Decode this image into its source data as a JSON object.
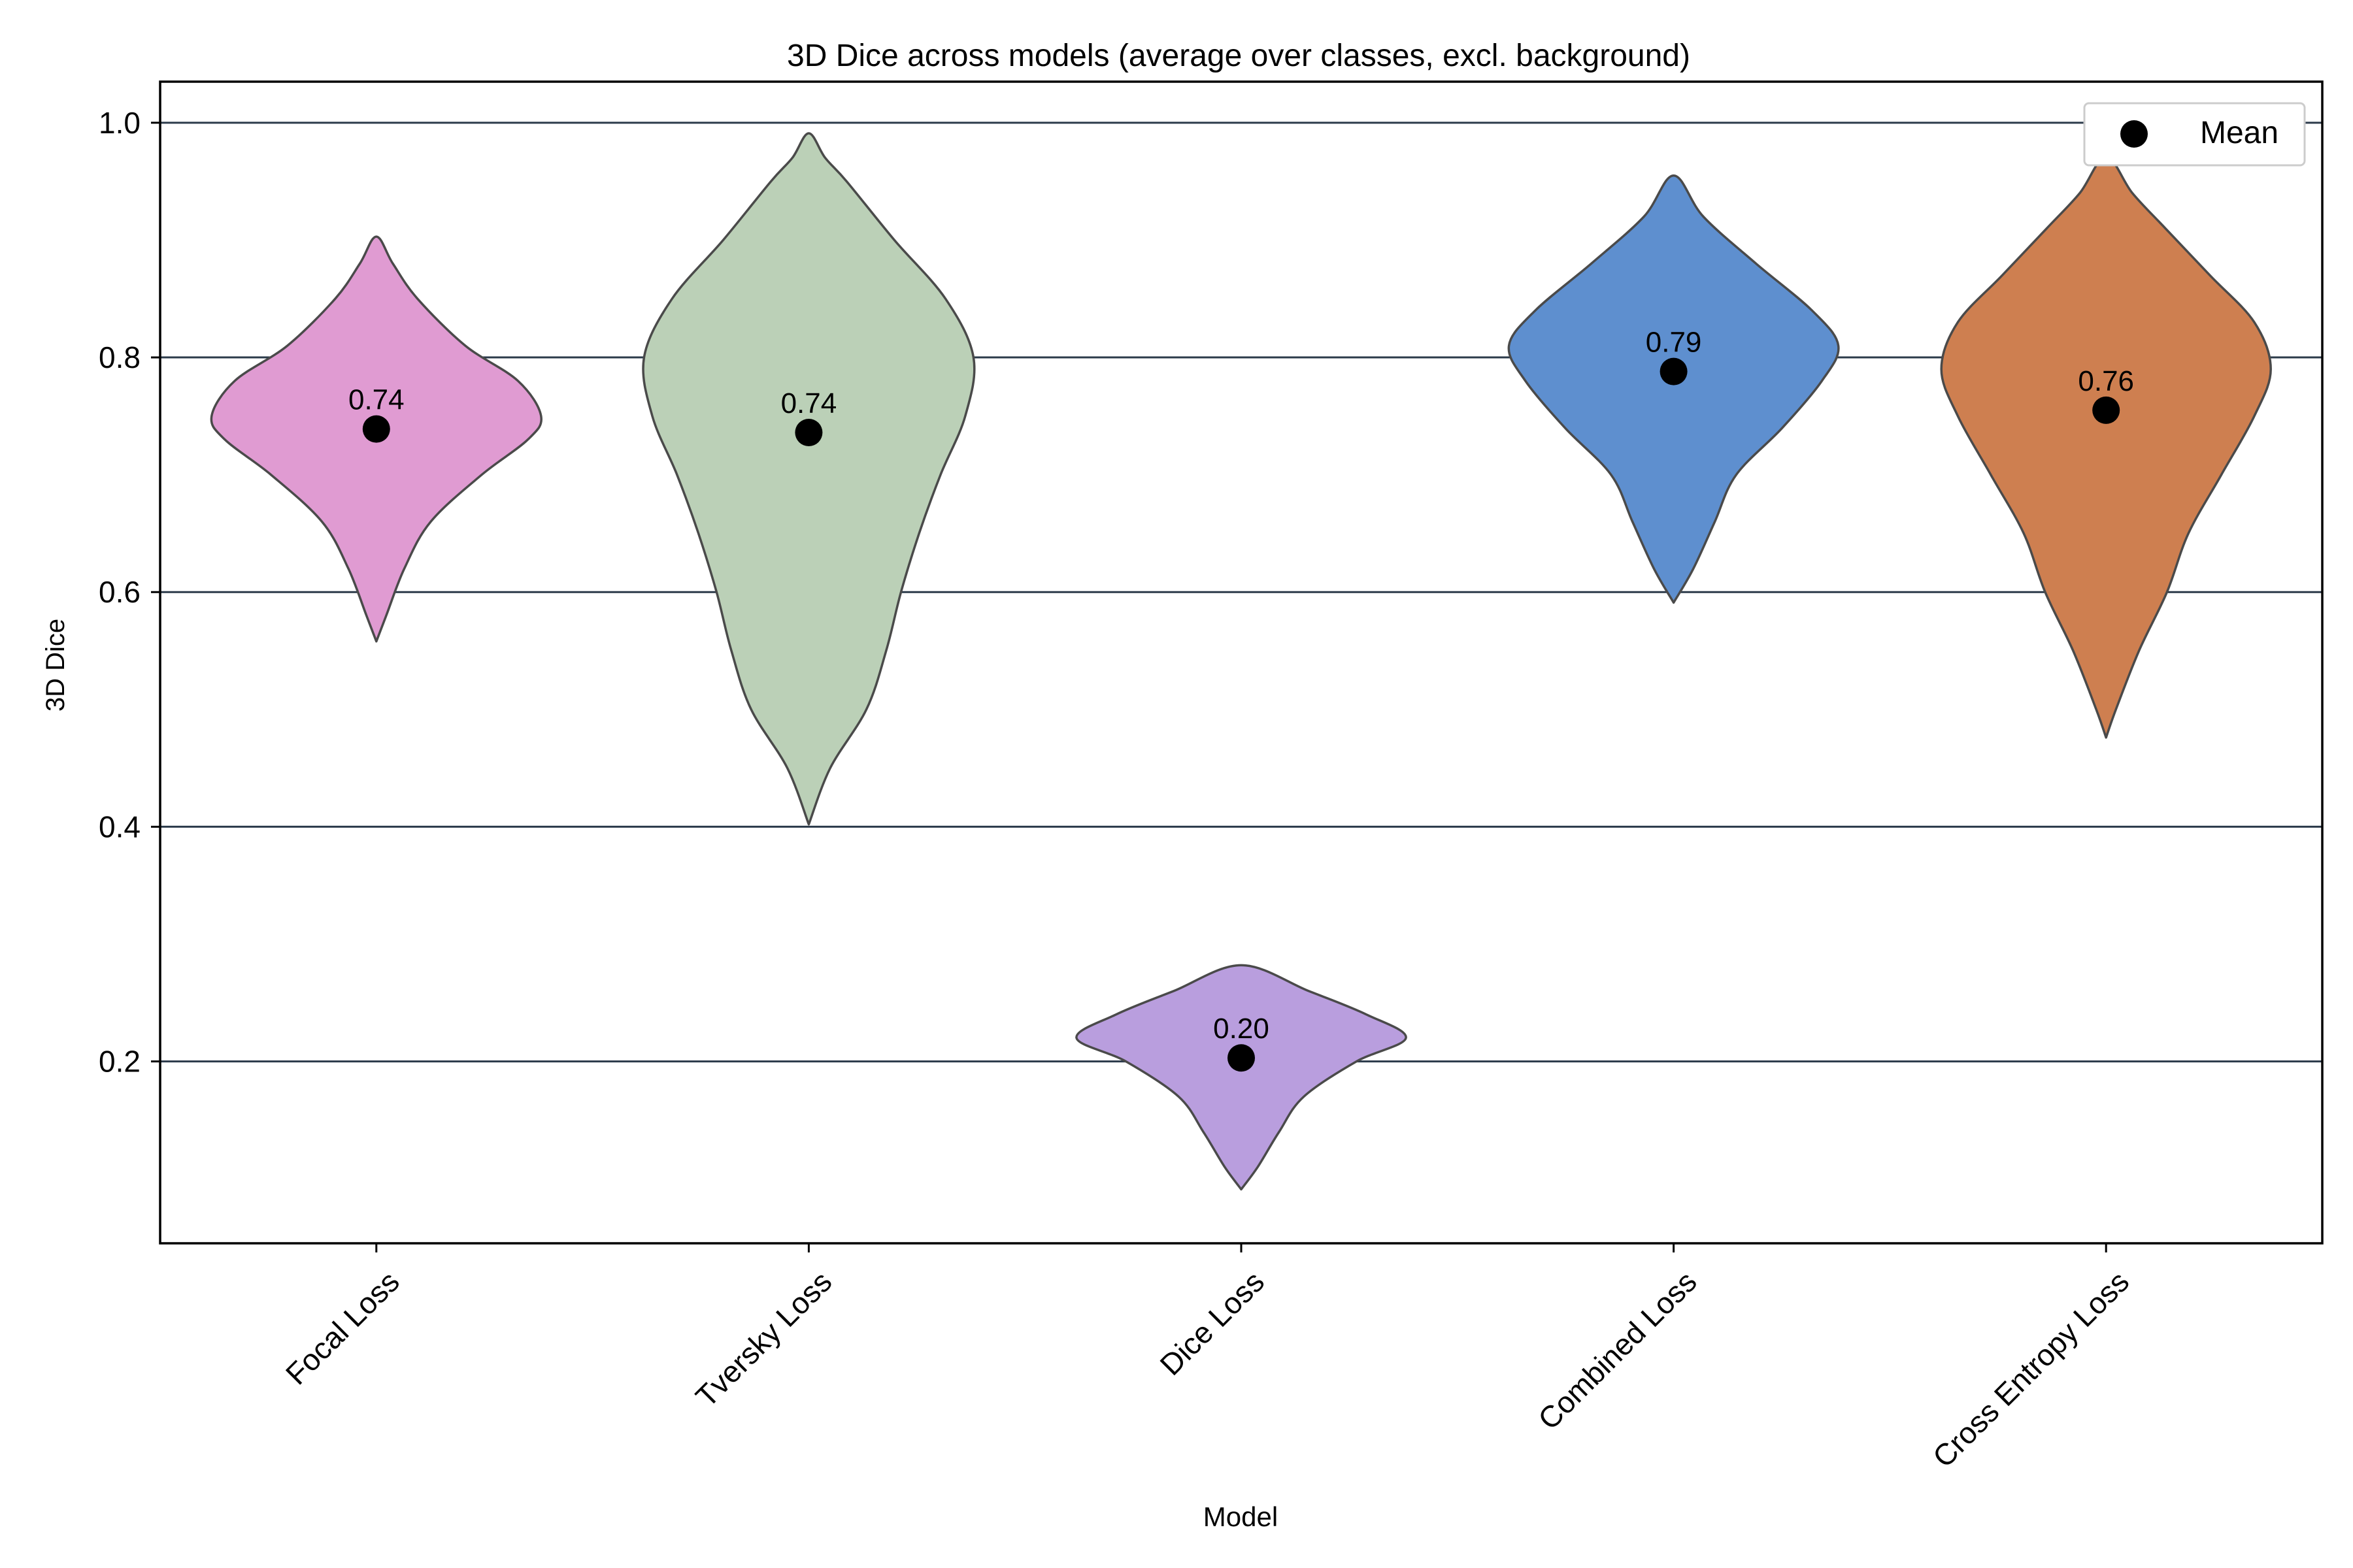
{
  "chart_data": {
    "type": "violin",
    "title": "3D Dice across models (average over classes, excl. background)",
    "xlabel": "Model",
    "ylabel": "3D Dice",
    "ylim": [
      0.045,
      1.035
    ],
    "yticks": [
      0.2,
      0.4,
      0.6,
      0.8,
      1.0
    ],
    "ytick_labels": [
      "0.2",
      "0.4",
      "0.6",
      "0.8",
      "1.0"
    ],
    "grid": "horizontal",
    "legend": {
      "position": "top-right",
      "entries": [
        {
          "label": "Mean",
          "marker": "black-dot"
        }
      ]
    },
    "categories": [
      "Focal Loss",
      "Tversky Loss",
      "Dice Loss",
      "Combined Loss",
      "Cross Entropy Loss"
    ],
    "series": [
      {
        "category": "Focal Loss",
        "color": "#e09bd2",
        "min": 0.558,
        "max": 0.903,
        "mean": 0.739,
        "mean_label": "0.74",
        "profile": [
          [
            0.558,
            0.0
          ],
          [
            0.58,
            0.06
          ],
          [
            0.62,
            0.17
          ],
          [
            0.66,
            0.33
          ],
          [
            0.7,
            0.64
          ],
          [
            0.73,
            0.92
          ],
          [
            0.75,
            1.0
          ],
          [
            0.78,
            0.86
          ],
          [
            0.81,
            0.54
          ],
          [
            0.85,
            0.25
          ],
          [
            0.88,
            0.1
          ],
          [
            0.903,
            0.0
          ]
        ]
      },
      {
        "category": "Tversky Loss",
        "color": "#bbd0b7",
        "min": 0.402,
        "max": 0.991,
        "mean": 0.736,
        "mean_label": "0.74",
        "profile": [
          [
            0.402,
            0.0
          ],
          [
            0.45,
            0.13
          ],
          [
            0.5,
            0.35
          ],
          [
            0.55,
            0.47
          ],
          [
            0.6,
            0.56
          ],
          [
            0.65,
            0.67
          ],
          [
            0.7,
            0.8
          ],
          [
            0.75,
            0.95
          ],
          [
            0.8,
            1.0
          ],
          [
            0.85,
            0.83
          ],
          [
            0.9,
            0.52
          ],
          [
            0.95,
            0.23
          ],
          [
            0.97,
            0.1
          ],
          [
            0.991,
            0.0
          ]
        ]
      },
      {
        "category": "Dice Loss",
        "color": "#b99ede",
        "min": 0.091,
        "max": 0.282,
        "mean": 0.203,
        "mean_label": "0.20",
        "profile": [
          [
            0.091,
            0.0
          ],
          [
            0.11,
            0.1
          ],
          [
            0.14,
            0.23
          ],
          [
            0.17,
            0.38
          ],
          [
            0.2,
            0.7
          ],
          [
            0.22,
            1.0
          ],
          [
            0.24,
            0.76
          ],
          [
            0.26,
            0.41
          ],
          [
            0.282,
            0.0
          ]
        ]
      },
      {
        "category": "Combined Loss",
        "color": "#5e8fcf",
        "min": 0.591,
        "max": 0.955,
        "mean": 0.788,
        "mean_label": "0.79",
        "profile": [
          [
            0.591,
            0.0
          ],
          [
            0.62,
            0.12
          ],
          [
            0.66,
            0.25
          ],
          [
            0.7,
            0.38
          ],
          [
            0.74,
            0.66
          ],
          [
            0.78,
            0.9
          ],
          [
            0.81,
            1.0
          ],
          [
            0.84,
            0.84
          ],
          [
            0.88,
            0.5
          ],
          [
            0.92,
            0.18
          ],
          [
            0.955,
            0.0
          ]
        ]
      },
      {
        "category": "Cross Entropy Loss",
        "color": "#ce7f50",
        "min": 0.476,
        "max": 0.971,
        "mean": 0.755,
        "mean_label": "0.76",
        "profile": [
          [
            0.476,
            0.0
          ],
          [
            0.5,
            0.06
          ],
          [
            0.55,
            0.2
          ],
          [
            0.6,
            0.37
          ],
          [
            0.65,
            0.5
          ],
          [
            0.7,
            0.7
          ],
          [
            0.75,
            0.9
          ],
          [
            0.79,
            1.0
          ],
          [
            0.83,
            0.9
          ],
          [
            0.87,
            0.63
          ],
          [
            0.91,
            0.36
          ],
          [
            0.94,
            0.16
          ],
          [
            0.971,
            0.0
          ]
        ]
      }
    ]
  }
}
